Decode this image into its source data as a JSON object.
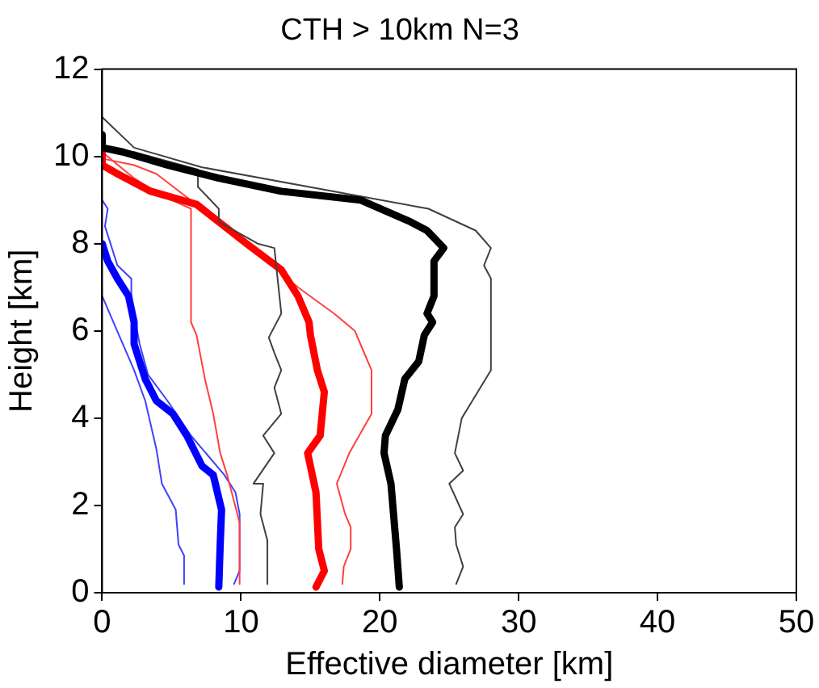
{
  "chart_data": {
    "type": "line",
    "title": "CTH > 10km N=3",
    "xlabel": "Effective diameter [km]",
    "ylabel": "Height [km]",
    "xlim": [
      0,
      50
    ],
    "xticks": [
      0,
      10,
      20,
      30,
      40,
      50
    ],
    "ylim": [
      0,
      12
    ],
    "yticks": [
      0,
      2,
      4,
      6,
      8,
      10,
      12
    ],
    "grid": false,
    "legend": false,
    "marker": "none",
    "line_style": "solid",
    "series": [
      {
        "color": "#000000",
        "x": [
          21.4,
          21.2,
          20.8,
          20.3,
          20.4,
          21.3,
          21.8,
          22.8,
          23.2,
          23.8,
          23.4,
          23.9,
          23.9,
          24.6,
          23.4,
          22.2,
          18.6,
          12.9,
          8.4,
          4.7,
          1.5,
          0,
          0
        ],
        "values": [
          0.13,
          1.0,
          2.5,
          3.2,
          3.6,
          4.2,
          4.9,
          5.3,
          5.9,
          6.2,
          6.4,
          6.8,
          7.6,
          7.9,
          8.3,
          8.5,
          9.0,
          9.2,
          9.5,
          9.8,
          10.1,
          10.2,
          10.5
        ]
      },
      {
        "color": "#404040",
        "x": [
          25.5,
          26,
          25.5,
          25.4,
          26,
          25,
          26,
          25.4,
          25.9,
          28,
          28,
          27.5,
          28,
          26.9,
          23.5,
          7.2,
          2.3,
          0
        ],
        "values": [
          0.2,
          0.6,
          1.1,
          1.5,
          1.8,
          2.5,
          2.8,
          3.2,
          4.0,
          5.1,
          7.2,
          7.5,
          7.9,
          8.3,
          8.8,
          9.75,
          10.2,
          10.9
        ]
      },
      {
        "color": "#404040",
        "x": [
          11.9,
          11.9,
          11.4,
          11.6,
          10.9,
          12.4,
          11.6,
          12.9,
          12.4,
          12.9,
          12.4,
          12.0,
          12.9,
          12.4,
          11.2,
          8.4,
          8.4,
          6.9,
          6.9,
          2.3,
          0
        ],
        "values": [
          0.2,
          1.2,
          1.8,
          2.5,
          2.5,
          3.2,
          3.6,
          4.1,
          4.7,
          5.1,
          5.5,
          5.85,
          6.4,
          7.9,
          8.0,
          8.5,
          8.8,
          9.3,
          9.7,
          10.1,
          10.2
        ]
      },
      {
        "color": "#ff0000",
        "x": [
          15.4,
          16,
          15.6,
          15.4,
          14.8,
          15.7,
          16.0,
          15.5,
          15.0,
          14.9,
          14.1,
          12.9,
          10.4,
          8.4,
          6.8,
          3.5,
          1.1,
          0,
          0
        ],
        "values": [
          0.13,
          0.5,
          1.0,
          2.3,
          3.2,
          3.6,
          4.6,
          5.1,
          5.9,
          6.2,
          6.8,
          7.4,
          8.0,
          8.5,
          8.9,
          9.2,
          9.6,
          9.8,
          10.2
        ]
      },
      {
        "color": "#ff4040",
        "x": [
          17.3,
          17.4,
          17.9,
          17.9,
          17.5,
          16.9,
          17.8,
          19.4,
          19.4,
          18.6,
          18.2,
          16.7,
          14.1,
          10.4,
          8.0,
          3.9,
          2.3,
          0
        ],
        "values": [
          0.2,
          0.6,
          1.0,
          1.5,
          1.8,
          2.5,
          3.2,
          4.1,
          5.1,
          5.7,
          6.0,
          6.4,
          7.0,
          8.0,
          8.6,
          9.6,
          9.8,
          9.95
        ]
      },
      {
        "color": "#ff4040",
        "x": [
          9.9,
          9.9,
          9.0,
          8.5,
          8.0,
          7.4,
          6.8,
          6.4,
          6.4,
          4.3,
          2.3,
          0
        ],
        "values": [
          0.2,
          1.6,
          2.7,
          3.2,
          4.1,
          4.9,
          5.9,
          6.2,
          8.8,
          9.1,
          9.5,
          10.1
        ]
      },
      {
        "color": "#0000ff",
        "x": [
          8.4,
          8.5,
          8.6,
          8.0,
          7.2,
          6.1,
          5.1,
          3.9,
          3.1,
          2.3,
          2.3,
          1.9,
          1.1,
          0.4,
          0
        ],
        "values": [
          0.13,
          1.1,
          1.9,
          2.7,
          2.9,
          3.6,
          4.1,
          4.4,
          4.9,
          5.7,
          6.2,
          6.8,
          7.2,
          7.6,
          8.0
        ]
      },
      {
        "color": "#4040ff",
        "x": [
          9.5,
          9.9,
          9.9,
          9.6,
          8.8,
          6.4,
          4.7,
          3.3,
          2.7,
          2.1,
          2.1,
          1.1,
          0.2,
          0.4,
          0
        ],
        "values": [
          0.2,
          0.5,
          1.8,
          2.3,
          2.7,
          3.6,
          4.4,
          5.0,
          5.7,
          6.7,
          7.2,
          7.5,
          8.4,
          8.8,
          9.0
        ]
      },
      {
        "color": "#4040ff",
        "x": [
          5.9,
          5.9,
          5.5,
          5.3,
          4.3,
          3.9,
          3.1,
          2.3,
          0
        ],
        "values": [
          0.2,
          0.85,
          1.1,
          1.9,
          2.5,
          3.3,
          4.4,
          5.1,
          6.8
        ]
      }
    ]
  }
}
